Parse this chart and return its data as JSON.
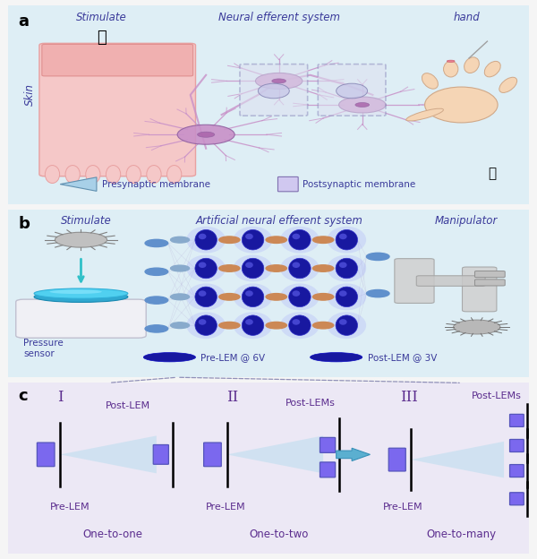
{
  "fig_width": 6.0,
  "fig_height": 6.24,
  "bg_color": "#f5f5f5",
  "panel_a": {
    "label": "a",
    "bg_color": "#deeef5",
    "border_color": "#90c0d8",
    "texts": {
      "stimulate": "Stimulate",
      "neural": "Neural efferent system",
      "hand": "hand",
      "skin": "Skin",
      "presynaptic": "Presynaptic membrane",
      "postsynaptic": "Postsynaptic membrane"
    },
    "text_color": "#3a3a9a"
  },
  "panel_b": {
    "label": "b",
    "bg_color": "#deeef5",
    "border_color": "#90c0d8",
    "texts": {
      "stimulate": "Stimulate",
      "neural": "Artificial neural efferent system",
      "manipulator": "Manipulator",
      "pressure": "Pressure\nsensor",
      "pre_lem": "Pre-LEM @ 6V",
      "post_lem": "Post-LEM @ 3V"
    },
    "text_color": "#3a3a9a"
  },
  "panel_c": {
    "label": "c",
    "bg_color": "#ece8f5",
    "border_color": "#b0a8d8",
    "texts": {
      "roman1": "I",
      "roman2": "II",
      "roman3": "III",
      "post_lem1": "Post-LEM",
      "post_lems2": "Post-LEMs",
      "post_lems3": "Post-LEMs",
      "pre_lem1": "Pre-LEM",
      "pre_lem2": "Pre-LEM",
      "pre_lem3": "Pre-LEM",
      "one_to_one": "One-to-one",
      "one_to_two": "One-to-two",
      "one_to_many": "One-to-many"
    },
    "text_color": "#5b2d8e",
    "purple": "#7b68ee",
    "blue_arrow": "#5ba3d0",
    "beam_color": "#c5dff0"
  }
}
